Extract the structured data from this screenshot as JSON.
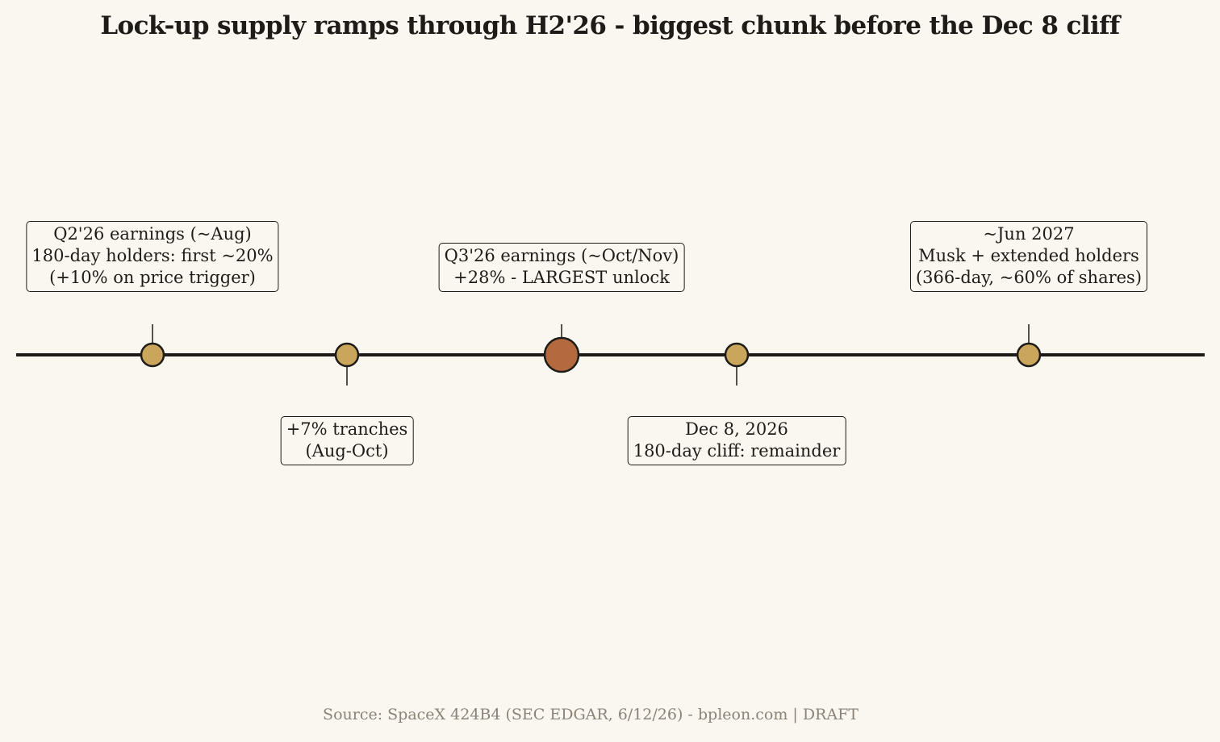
{
  "title": "Lock-up supply ramps through H2'26 - biggest chunk before the Dec 8 cliff",
  "colors": {
    "background": "#faf6f0",
    "axis": "#1e1c18",
    "milestone": "#c9a65c",
    "highlight": "#b4693e",
    "source_text": "#8a8478"
  },
  "milestones": [
    {
      "id": "q2-earnings",
      "lines": [
        "Q2'26 earnings (~Aug)",
        "180-day holders: first ~20%",
        "(+10% on price trigger)"
      ],
      "placement": "above",
      "highlight": false
    },
    {
      "id": "tranches",
      "lines": [
        "+7% tranches",
        "(Aug-Oct)"
      ],
      "placement": "below",
      "highlight": false
    },
    {
      "id": "q3-earnings",
      "lines": [
        "Q3'26 earnings (~Oct/Nov)",
        "+28% - LARGEST unlock"
      ],
      "placement": "above",
      "highlight": true
    },
    {
      "id": "dec-cliff",
      "lines": [
        "Dec 8, 2026",
        "180-day cliff: remainder"
      ],
      "placement": "below",
      "highlight": false
    },
    {
      "id": "jun-2027",
      "lines": [
        "~Jun 2027",
        "Musk + extended holders",
        "(366-day, ~60% of shares)"
      ],
      "placement": "above",
      "highlight": false
    }
  ],
  "source": "Source: SpaceX 424B4 (SEC EDGAR, 6/12/26) - bpleon.com  |  DRAFT"
}
